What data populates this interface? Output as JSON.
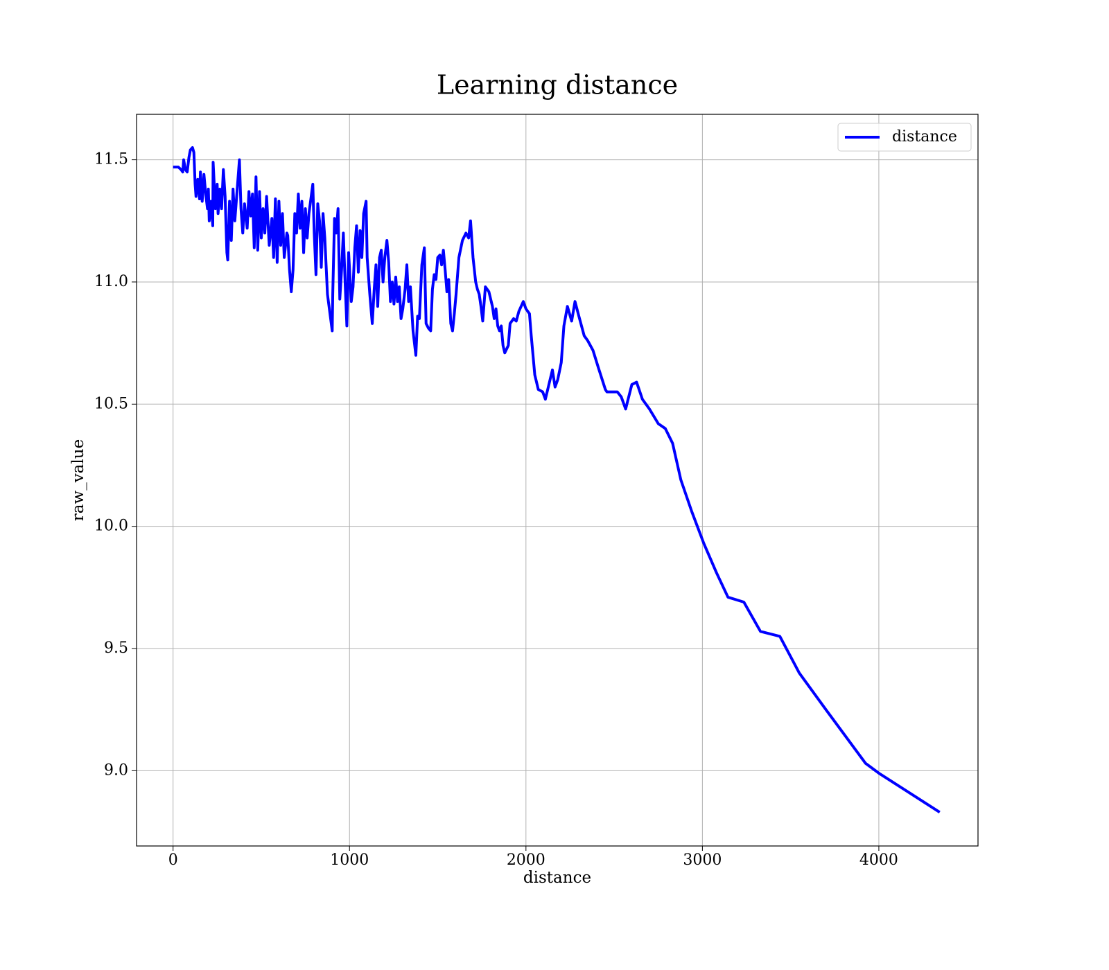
{
  "chart_data": {
    "type": "line",
    "title": "Learning distance",
    "xlabel": "distance",
    "ylabel": "raw_value",
    "x": [
      0,
      30,
      45,
      55,
      60,
      70,
      80,
      90,
      98,
      110,
      118,
      125,
      130,
      140,
      150,
      155,
      165,
      175,
      185,
      195,
      200,
      205,
      215,
      225,
      227,
      240,
      250,
      255,
      265,
      275,
      285,
      295,
      305,
      310,
      320,
      330,
      340,
      350,
      376,
      385,
      395,
      405,
      420,
      430,
      440,
      450,
      460,
      470,
      480,
      490,
      500,
      510,
      520,
      530,
      545,
      560,
      570,
      580,
      590,
      600,
      610,
      620,
      630,
      645,
      650,
      660,
      670,
      680,
      690,
      700,
      710,
      720,
      730,
      740,
      750,
      760,
      770,
      792,
      800,
      810,
      820,
      830,
      840,
      850,
      860,
      875,
      902,
      905,
      915,
      925,
      935,
      945,
      955,
      965,
      975,
      985,
      995,
      1010,
      1020,
      1030,
      1040,
      1050,
      1060,
      1070,
      1080,
      1094,
      1100,
      1115,
      1129,
      1140,
      1150,
      1160,
      1170,
      1180,
      1190,
      1200,
      1212,
      1222,
      1232,
      1242,
      1252,
      1262,
      1272,
      1282,
      1292,
      1302,
      1315,
      1325,
      1335,
      1345,
      1360,
      1376,
      1386,
      1396,
      1410,
      1424,
      1434,
      1448,
      1460,
      1470,
      1480,
      1490,
      1500,
      1512,
      1522,
      1532,
      1542,
      1552,
      1562,
      1574,
      1584,
      1594,
      1604,
      1620,
      1640,
      1660,
      1675,
      1686,
      1700,
      1715,
      1725,
      1735,
      1745,
      1755,
      1770,
      1790,
      1810,
      1820,
      1830,
      1840,
      1850,
      1860,
      1870,
      1880,
      1900,
      1910,
      1930,
      1945,
      1960,
      1985,
      2000,
      2020,
      2030,
      2050,
      2070,
      2095,
      2110,
      2130,
      2150,
      2165,
      2180,
      2200,
      2215,
      2235,
      2259,
      2278,
      2300,
      2330,
      2350,
      2380,
      2410,
      2450,
      2459,
      2518,
      2540,
      2565,
      2600,
      2627,
      2660,
      2700,
      2750,
      2790,
      2831,
      2878,
      2940,
      3008,
      3080,
      3145,
      3235,
      3329,
      3439,
      3549,
      3700,
      3925,
      4000,
      4345
    ],
    "series": [
      {
        "name": "distance",
        "color": "#0000ff",
        "values": [
          11.47,
          11.47,
          11.46,
          11.45,
          11.5,
          11.46,
          11.45,
          11.51,
          11.54,
          11.55,
          11.53,
          11.4,
          11.35,
          11.42,
          11.34,
          11.45,
          11.33,
          11.44,
          11.36,
          11.3,
          11.38,
          11.25,
          11.33,
          11.23,
          11.49,
          11.3,
          11.4,
          11.28,
          11.38,
          11.3,
          11.46,
          11.35,
          11.12,
          11.09,
          11.33,
          11.17,
          11.38,
          11.25,
          11.5,
          11.3,
          11.2,
          11.32,
          11.22,
          11.37,
          11.27,
          11.36,
          11.14,
          11.43,
          11.13,
          11.37,
          11.18,
          11.3,
          11.2,
          11.35,
          11.15,
          11.26,
          11.1,
          11.34,
          11.08,
          11.33,
          11.15,
          11.28,
          11.1,
          11.2,
          11.19,
          11.05,
          10.96,
          11.05,
          11.28,
          11.2,
          11.36,
          11.22,
          11.33,
          11.12,
          11.3,
          11.18,
          11.28,
          11.4,
          11.2,
          11.03,
          11.32,
          11.25,
          11.06,
          11.28,
          11.18,
          10.95,
          10.8,
          10.95,
          11.26,
          11.2,
          11.3,
          10.93,
          11.05,
          11.2,
          11.0,
          10.82,
          11.12,
          10.92,
          10.98,
          11.14,
          11.23,
          11.04,
          11.21,
          11.1,
          11.28,
          11.33,
          11.1,
          10.95,
          10.83,
          10.97,
          11.07,
          10.9,
          11.1,
          11.13,
          11.0,
          11.1,
          11.17,
          11.08,
          10.92,
          11.0,
          10.91,
          11.02,
          10.92,
          10.98,
          10.85,
          10.89,
          10.97,
          11.07,
          10.92,
          10.98,
          10.8,
          10.7,
          10.86,
          10.85,
          11.07,
          11.14,
          10.83,
          10.81,
          10.8,
          10.97,
          11.03,
          11.01,
          11.1,
          11.11,
          11.07,
          11.13,
          11.05,
          10.96,
          11.01,
          10.83,
          10.8,
          10.87,
          10.95,
          11.1,
          11.17,
          11.2,
          11.18,
          11.25,
          11.1,
          11.0,
          10.97,
          10.95,
          10.9,
          10.84,
          10.98,
          10.96,
          10.9,
          10.85,
          10.89,
          10.82,
          10.8,
          10.82,
          10.74,
          10.71,
          10.74,
          10.83,
          10.85,
          10.84,
          10.88,
          10.92,
          10.89,
          10.87,
          10.78,
          10.62,
          10.56,
          10.55,
          10.52,
          10.58,
          10.64,
          10.57,
          10.6,
          10.67,
          10.82,
          10.9,
          10.84,
          10.92,
          10.86,
          10.78,
          10.76,
          10.72,
          10.65,
          10.56,
          10.55,
          10.55,
          10.53,
          10.48,
          10.58,
          10.59,
          10.52,
          10.48,
          10.42,
          10.4,
          10.34,
          10.19,
          10.06,
          9.93,
          9.81,
          9.71,
          9.69,
          9.57,
          9.55,
          9.4,
          9.25,
          9.03,
          8.99,
          8.83
        ]
      }
    ],
    "xlim": [
      -207,
      4562
    ],
    "ylim": [
      8.692,
      11.686
    ],
    "xticks": [
      0,
      1000,
      2000,
      3000,
      4000
    ],
    "yticks": [
      {
        "value": 9,
        "label": "9.0"
      },
      9.5,
      {
        "value": 10,
        "label": "10.0"
      },
      10.5,
      {
        "value": 11,
        "label": "11.0"
      },
      11.5
    ],
    "grid": true,
    "legend": "upper right"
  }
}
